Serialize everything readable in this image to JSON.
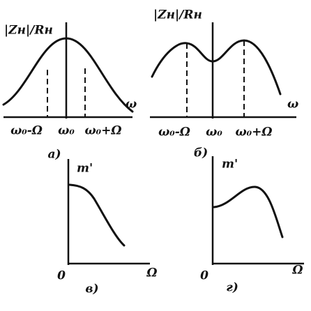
{
  "panels": [
    {
      "y_label": "|Zн|/Rн",
      "x_label": "ω",
      "ticks": [
        "ω₀-Ω",
        "ω₀",
        "ω₀+Ω"
      ],
      "caption": "а)"
    },
    {
      "y_label": "|Zн|/Rн",
      "x_label": "ω",
      "ticks": [
        "ω₀-Ω",
        "ω₀",
        "ω₀+Ω"
      ],
      "caption": "б)"
    },
    {
      "y_label": "m'",
      "origin": "0",
      "x_label": "Ω",
      "caption": "в)"
    },
    {
      "y_label": "m'",
      "origin": "0",
      "x_label": "Ω",
      "caption": "г)"
    }
  ]
}
